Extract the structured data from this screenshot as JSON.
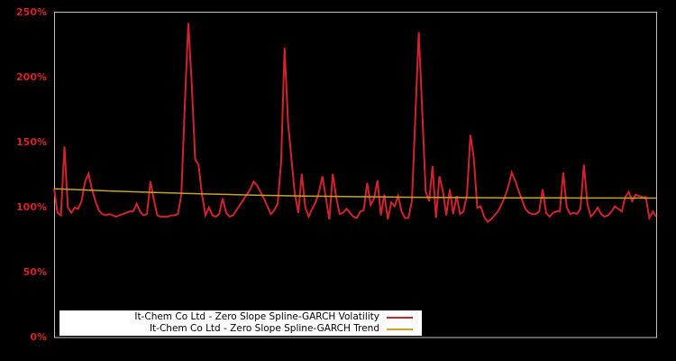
{
  "colors": {
    "background": "#000000",
    "plot_border": "#c0c0c0",
    "axis_label": "#d6202a",
    "volatility_red": "#d2222e",
    "trend_yellow": "#c9a227",
    "legend_background": "#ffffff",
    "legend_text": "#000000"
  },
  "chart_data": {
    "type": "line",
    "title": "",
    "xlabel": "",
    "ylabel": "",
    "ylim": [
      0,
      250
    ],
    "ytick_values": [
      0,
      50,
      100,
      150,
      200,
      250
    ],
    "ytick_labels": [
      "0%",
      "50%",
      "100%",
      "150%",
      "200%",
      "250%"
    ],
    "x_tick_labels_visible": false,
    "grid": false,
    "legend_position": "bottom-left-inside",
    "series": [
      {
        "name": "It-Chem Co Ltd - Zero Slope Spline-GARCH Volatility",
        "color": "#d2222e",
        "values": [
          115,
          96,
          94,
          147,
          100,
          96,
          100,
          99,
          105,
          120,
          126,
          114,
          105,
          98,
          95,
          94,
          95,
          94,
          93,
          94,
          95,
          96,
          97,
          97,
          103,
          97,
          94,
          95,
          120,
          106,
          94,
          93,
          93,
          93,
          94,
          94,
          95,
          110,
          180,
          242,
          196,
          137,
          133,
          110,
          94,
          100,
          94,
          93,
          95,
          107,
          96,
          93,
          94,
          98,
          102,
          106,
          110,
          114,
          120,
          117,
          112,
          107,
          101,
          95,
          98,
          103,
          135,
          223,
          165,
          137,
          110,
          96,
          126,
          100,
          93,
          99,
          104,
          112,
          124,
          107,
          91,
          126,
          108,
          95,
          96,
          99,
          96,
          93,
          92,
          97,
          98,
          119,
          102,
          107,
          121,
          94,
          110,
          91,
          104,
          101,
          109,
          97,
          92,
          92,
          105,
          170,
          235,
          175,
          112,
          105,
          132,
          92,
          124,
          113,
          94,
          114,
          95,
          109,
          95,
          97,
          110,
          156,
          138,
          100,
          101,
          93,
          89,
          91,
          94,
          97,
          102,
          108,
          116,
          127,
          121,
          113,
          106,
          99,
          96,
          95,
          95,
          97,
          114,
          96,
          93,
          96,
          97,
          97,
          127,
          100,
          95,
          96,
          95,
          99,
          133,
          103,
          93,
          96,
          100,
          95,
          93,
          94,
          97,
          101,
          99,
          97,
          108,
          112,
          105,
          110,
          109,
          108,
          108,
          92,
          97,
          93
        ]
      },
      {
        "name": "It-Chem Co Ltd - Zero Slope Spline-GARCH Trend",
        "color": "#c9a227",
        "values": [
          114.5,
          112.9,
          111.6,
          110.5,
          109.6,
          108.9,
          108.4,
          108.0,
          107.7,
          107.5,
          107.4,
          107.35,
          107.3
        ]
      }
    ]
  }
}
